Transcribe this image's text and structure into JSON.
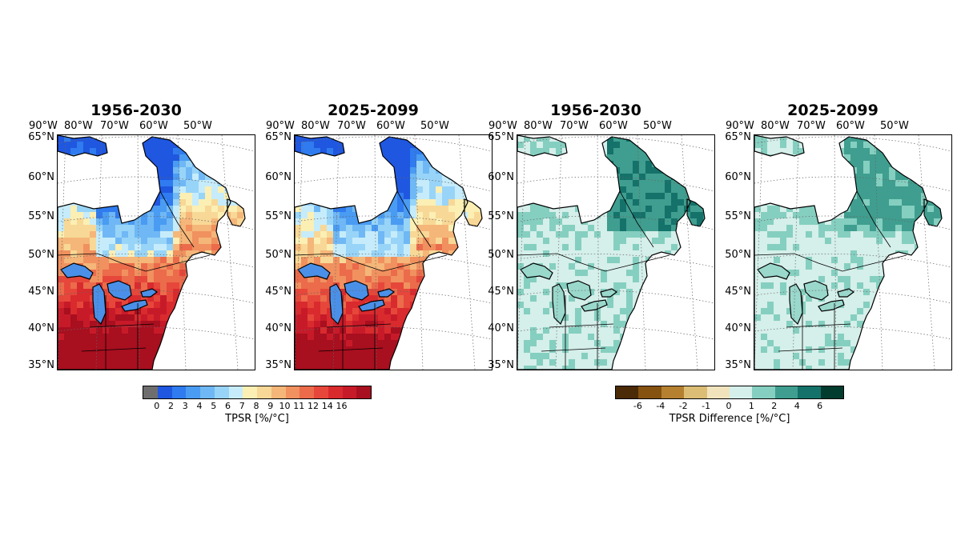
{
  "panels": [
    {
      "title": "1956-2030",
      "kind": "tpsr",
      "scale": 1.0
    },
    {
      "title": "2025-2099",
      "kind": "tpsr",
      "scale": 0.95
    },
    {
      "title": "1956-2030",
      "kind": "diff",
      "scale": 1.0
    },
    {
      "title": "2025-2099",
      "kind": "diff",
      "scale": 0.85
    }
  ],
  "lon_labels": [
    "90°W",
    "80°W",
    "70°W",
    "60°W",
    "50°W"
  ],
  "lat_labels": [
    "65°N",
    "60°N",
    "55°N",
    "50°N",
    "45°N",
    "40°N",
    "35°N"
  ],
  "colorbars": [
    {
      "label": "TPSR [%/°C]",
      "colors": [
        "#6e6e6e",
        "#1f57e0",
        "#2f7bef",
        "#4a9bf2",
        "#6fb8f5",
        "#98d4f8",
        "#c6ecfb",
        "#fbefb4",
        "#f8d896",
        "#f5b679",
        "#f0915f",
        "#eb6b4b",
        "#e6473a",
        "#d92a2e",
        "#c71a29",
        "#a80f1f"
      ],
      "ticks": [
        "0",
        "2",
        "3",
        "4",
        "5",
        "6",
        "7",
        "8",
        "9",
        "10",
        "11",
        "12",
        "14",
        "16"
      ]
    },
    {
      "label": "TPSR Difference [%/°C]",
      "colors": [
        "#4a2a07",
        "#865210",
        "#b5802f",
        "#dcbd76",
        "#f1e4bd",
        "#d5efea",
        "#85cfc0",
        "#3f9e8f",
        "#14726a",
        "#023c2f"
      ],
      "ticks": [
        "-6",
        "-4",
        "-2",
        "-1",
        "0",
        "1",
        "2",
        "4",
        "6"
      ]
    }
  ]
}
